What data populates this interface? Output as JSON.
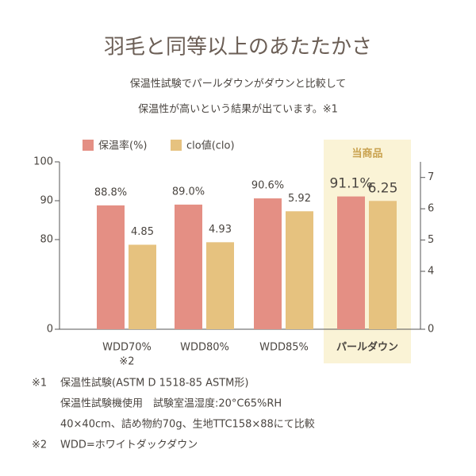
{
  "chart_data": {
    "type": "bar",
    "title": "羽毛と同等以上のあたたかさ",
    "subtitle": [
      "保温性試験でパールダウンがダウンと比較して",
      "保温性が高いという結果が出ています。※1"
    ],
    "categories": [
      "WDD70%",
      "WDD80%",
      "WDD85%",
      "パールダウン"
    ],
    "category_note": {
      "index": 0,
      "text": "※2"
    },
    "highlight": {
      "index": 3,
      "label": "当商品",
      "color": "#faf3d6"
    },
    "series": [
      {
        "name": "保温率(%)",
        "color": "#e48f84",
        "values": [
          88.8,
          89.0,
          90.6,
          91.1
        ],
        "value_labels": [
          "88.8%",
          "89.0%",
          "90.6%",
          "91.1%"
        ]
      },
      {
        "name": "clo値(clo)",
        "color": "#e6c27f",
        "values": [
          4.85,
          4.93,
          5.92,
          6.25
        ],
        "axis": "y2"
      }
    ],
    "ylim": [
      0,
      100
    ],
    "yticks": [
      0,
      80,
      90,
      100
    ],
    "y2lim": [
      0,
      7.5
    ],
    "y2ticks": [
      0,
      4,
      5,
      6,
      7
    ],
    "footnotes": [
      {
        "mark": "※1",
        "lines": [
          "保温性試験(ASTM D 1518-85 ASTM形)",
          "保温性試験機使用　試験室温湿度:20°C65%RH",
          "40×40cm、詰め物約70g、生地TTC158×88にて比較"
        ]
      },
      {
        "mark": "※2",
        "lines": [
          "WDD=ホワイトダックダウン"
        ]
      }
    ]
  }
}
